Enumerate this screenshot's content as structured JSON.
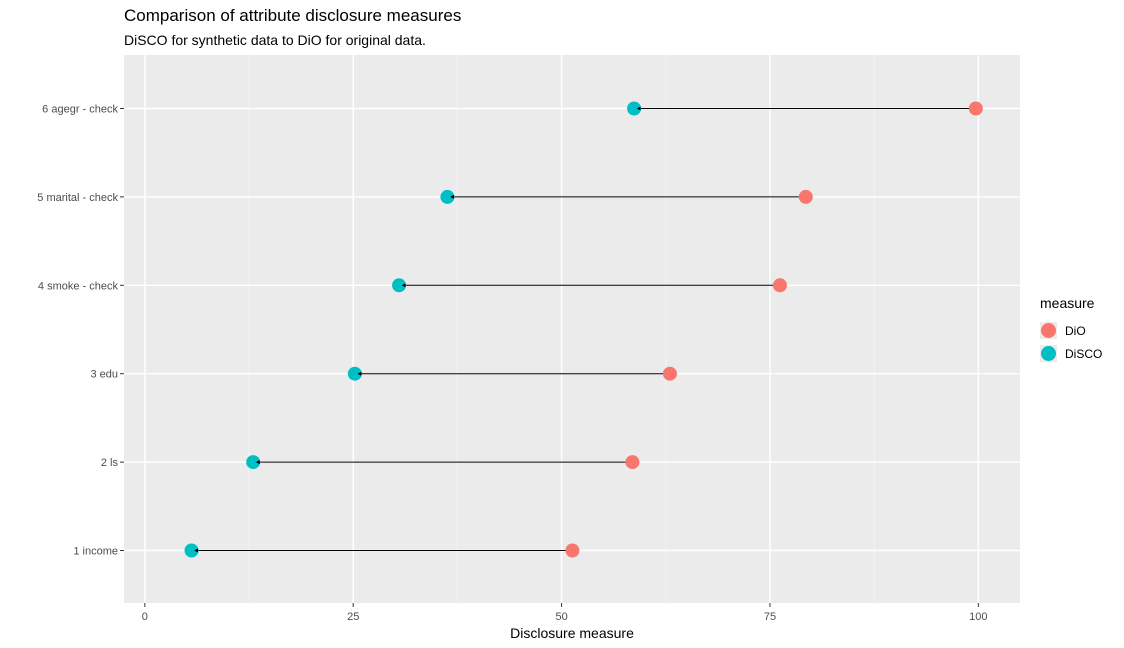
{
  "chart_data": {
    "type": "dumbbell",
    "title": "Comparison of attribute disclosure measures",
    "subtitle": "DiSCO for synthetic data  to DiO for original data.",
    "xlabel": "Disclosure measure",
    "ylabel": "",
    "xlim": [
      -2.5,
      105
    ],
    "x_ticks": [
      0,
      25,
      50,
      75,
      100
    ],
    "x_tick_labels": [
      "0",
      "25",
      "50",
      "75",
      "100"
    ],
    "categories": [
      "1 income",
      "2 ls",
      "3 edu",
      "4 smoke  - check",
      "5 marital  - check",
      "6 agegr  - check"
    ],
    "series": [
      {
        "name": "DiO",
        "color": "#F8766D",
        "values": [
          51.3,
          58.5,
          63.0,
          76.2,
          79.3,
          99.7
        ]
      },
      {
        "name": "DiSCO",
        "color": "#00BFC4",
        "values": [
          5.6,
          13.0,
          25.2,
          30.5,
          36.3,
          58.7
        ]
      }
    ],
    "arrows": "from DiO to DiSCO",
    "legend": {
      "title": "measure",
      "position": "right"
    },
    "grid": true
  }
}
